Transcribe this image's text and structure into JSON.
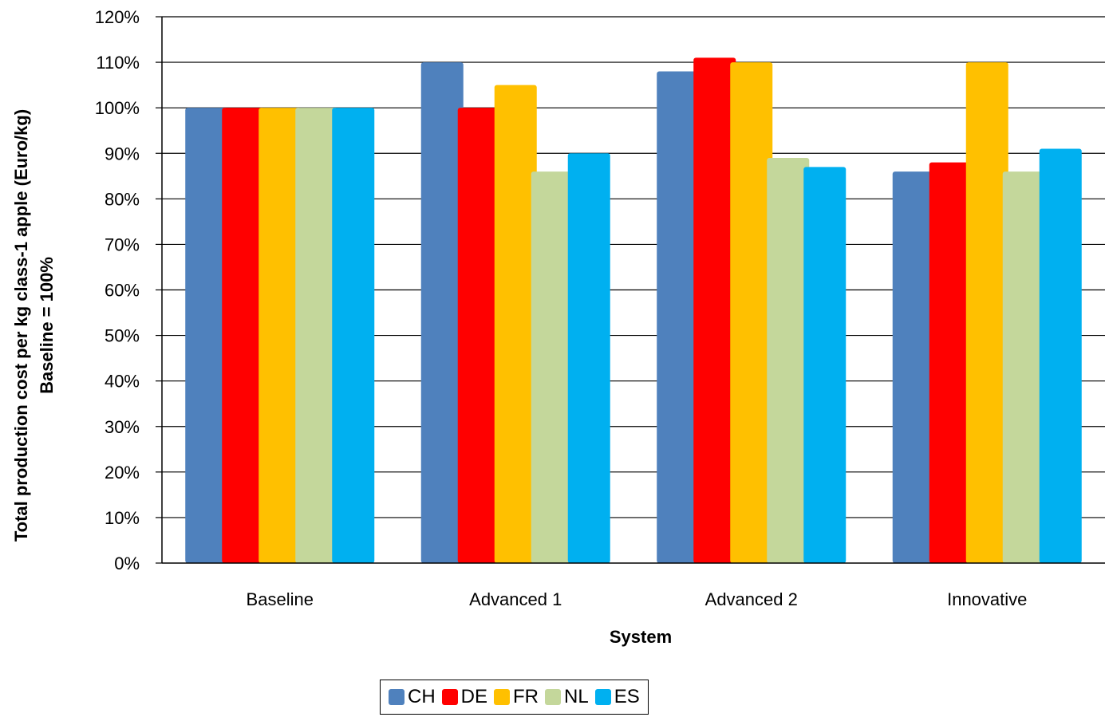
{
  "chart_data": {
    "type": "bar",
    "title": "",
    "xlabel": "System",
    "ylabel_lines": [
      "Total production  cost per kg class-1  apple (Euro/kg)",
      "Baseline = 100%"
    ],
    "categories": [
      "Baseline",
      "Advanced 1",
      "Advanced 2",
      "Innovative"
    ],
    "ylim": [
      0,
      120
    ],
    "y_ticks": [
      {
        "value": 0,
        "label": "0%"
      },
      {
        "value": 10,
        "label": "10%"
      },
      {
        "value": 20,
        "label": "20%"
      },
      {
        "value": 30,
        "label": "30%"
      },
      {
        "value": 40,
        "label": "40%"
      },
      {
        "value": 50,
        "label": "50%"
      },
      {
        "value": 60,
        "label": "60%"
      },
      {
        "value": 70,
        "label": "70%"
      },
      {
        "value": 80,
        "label": "80%"
      },
      {
        "value": 90,
        "label": "90%"
      },
      {
        "value": 100,
        "label": "100%"
      },
      {
        "value": 110,
        "label": "110%"
      },
      {
        "value": 120,
        "label": "120%"
      }
    ],
    "grid": true,
    "legend_position": "bottom",
    "series": [
      {
        "name": "CH",
        "color": "#4F81BD",
        "values": [
          100,
          110,
          108,
          86
        ]
      },
      {
        "name": "DE",
        "color": "#FF0000",
        "values": [
          100,
          100,
          111,
          88
        ]
      },
      {
        "name": "FR",
        "color": "#FFC000",
        "values": [
          100,
          105,
          110,
          110
        ]
      },
      {
        "name": "NL",
        "color": "#C4D79B",
        "values": [
          100,
          86,
          89,
          86
        ]
      },
      {
        "name": "ES",
        "color": "#00B0F0",
        "values": [
          100,
          90,
          87,
          91
        ]
      }
    ]
  }
}
